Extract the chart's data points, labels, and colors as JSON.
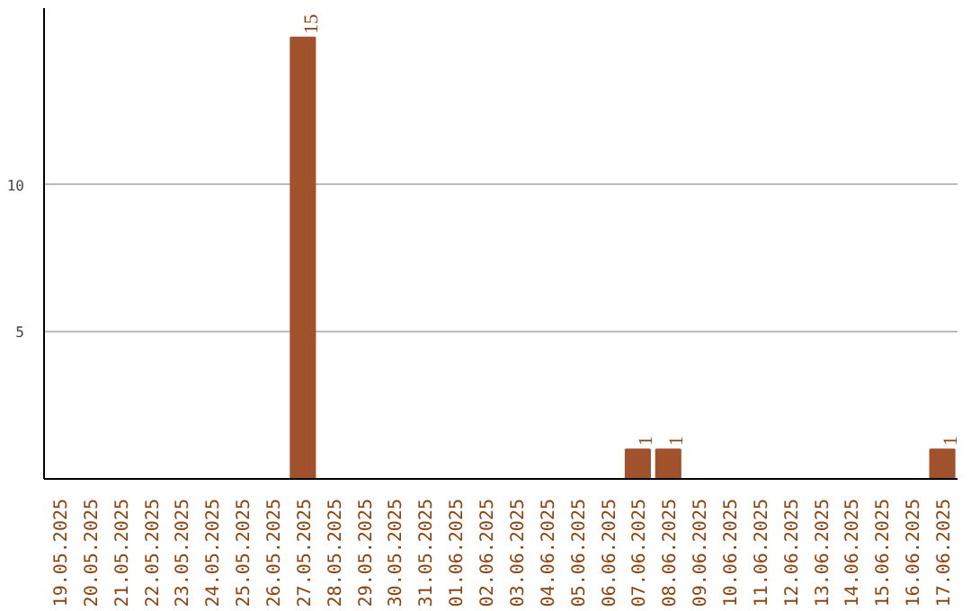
{
  "chart_data": {
    "type": "bar",
    "categories": [
      "19.05.2025",
      "20.05.2025",
      "21.05.2025",
      "22.05.2025",
      "23.05.2025",
      "24.05.2025",
      "25.05.2025",
      "26.05.2025",
      "27.05.2025",
      "28.05.2025",
      "29.05.2025",
      "30.05.2025",
      "31.05.2025",
      "01.06.2025",
      "02.06.2025",
      "03.06.2025",
      "04.06.2025",
      "05.06.2025",
      "06.06.2025",
      "07.06.2025",
      "08.06.2025",
      "09.06.2025",
      "10.06.2025",
      "11.06.2025",
      "12.06.2025",
      "13.06.2025",
      "14.06.2025",
      "15.06.2025",
      "16.06.2025",
      "17.06.2025"
    ],
    "values": [
      0,
      0,
      0,
      0,
      0,
      0,
      0,
      0,
      15,
      0,
      0,
      0,
      0,
      0,
      0,
      0,
      0,
      0,
      0,
      1,
      1,
      0,
      0,
      0,
      0,
      0,
      0,
      0,
      0,
      1
    ],
    "value_labels": [
      null,
      null,
      null,
      null,
      null,
      null,
      null,
      null,
      "15",
      null,
      null,
      null,
      null,
      null,
      null,
      null,
      null,
      null,
      null,
      "1",
      "1",
      null,
      null,
      null,
      null,
      null,
      null,
      null,
      null,
      "1"
    ],
    "color": "#a0522d",
    "ylim": [
      0,
      16
    ],
    "yticks": [
      5,
      10
    ],
    "grid": "y"
  }
}
